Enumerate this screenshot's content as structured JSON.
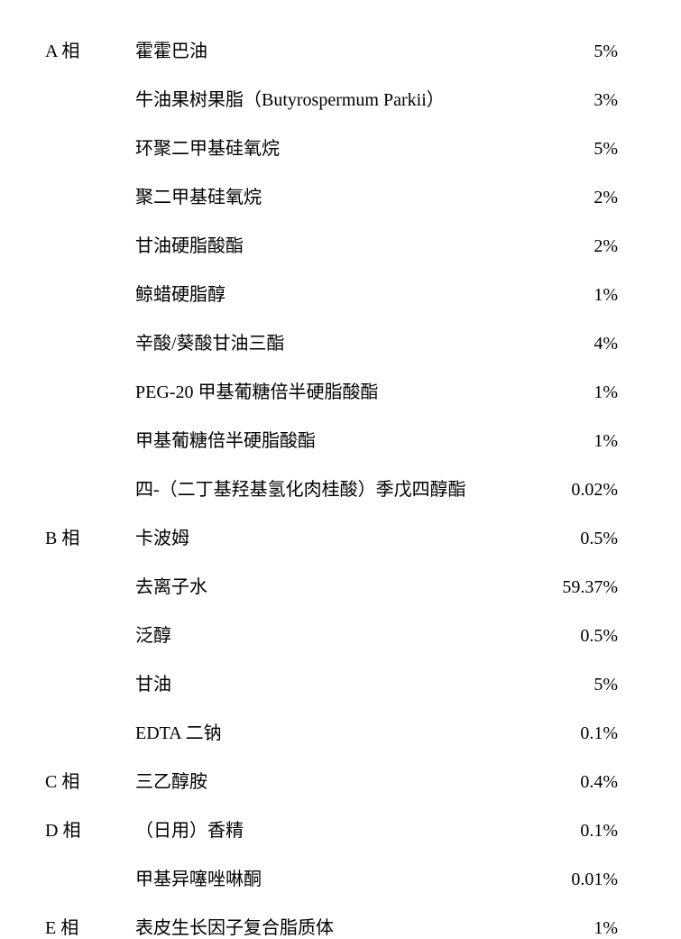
{
  "font_family": "SimSun",
  "font_size": 20,
  "text_color": "#000000",
  "background_color": "#ffffff",
  "row_spacing": 25,
  "phases": {
    "A": {
      "label": "A 相",
      "items": [
        {
          "name": "霍霍巴油",
          "percentage": "5%"
        },
        {
          "name": "牛油果树果脂（Butyrospermum Parkii）",
          "percentage": "3%"
        },
        {
          "name": "环聚二甲基硅氧烷",
          "percentage": "5%"
        },
        {
          "name": "聚二甲基硅氧烷",
          "percentage": "2%"
        },
        {
          "name": "甘油硬脂酸酯",
          "percentage": "2%"
        },
        {
          "name": "鲸蜡硬脂醇",
          "percentage": "1%"
        },
        {
          "name": "辛酸/葵酸甘油三酯",
          "percentage": "4%"
        },
        {
          "name": "PEG-20 甲基葡糖倍半硬脂酸酯",
          "percentage": "1%"
        },
        {
          "name": "甲基葡糖倍半硬脂酸酯",
          "percentage": "1%"
        },
        {
          "name": "四-（二丁基羟基氢化肉桂酸）季戊四醇酯",
          "percentage": "0.02%"
        }
      ]
    },
    "B": {
      "label": "B 相",
      "items": [
        {
          "name": "卡波姆",
          "percentage": "0.5%"
        },
        {
          "name": "去离子水",
          "percentage": "59.37%"
        },
        {
          "name": "泛醇",
          "percentage": "0.5%"
        },
        {
          "name": "甘油",
          "percentage": "5%"
        },
        {
          "name": "EDTA 二钠",
          "percentage": "0.1%"
        }
      ]
    },
    "C": {
      "label": "C 相",
      "items": [
        {
          "name": "三乙醇胺",
          "percentage": "0.4%"
        }
      ]
    },
    "D": {
      "label": "D 相",
      "items": [
        {
          "name": "（日用）香精",
          "percentage": "0.1%"
        },
        {
          "name": "甲基异噻唑啉酮",
          "percentage": "0.01%"
        }
      ]
    },
    "E": {
      "label": "E 相",
      "items": [
        {
          "name": "表皮生长因子复合脂质体",
          "percentage": "1%"
        }
      ]
    }
  }
}
